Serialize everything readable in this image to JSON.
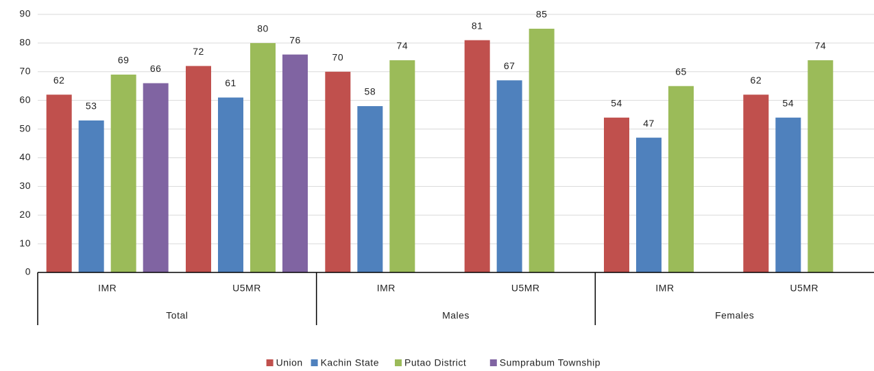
{
  "chart_data": {
    "type": "bar",
    "categories": [
      "IMR",
      "U5MR",
      "IMR",
      "U5MR",
      "IMR",
      "U5MR"
    ],
    "groups": [
      "Total",
      "Males",
      "Females"
    ],
    "series": [
      {
        "name": "Union",
        "color": "#c0504d",
        "values": [
          62,
          72,
          70,
          81,
          54,
          62
        ]
      },
      {
        "name": "Kachin State",
        "color": "#4f81bd",
        "values": [
          53,
          61,
          58,
          67,
          47,
          54
        ]
      },
      {
        "name": "Putao District",
        "color": "#9bbb59",
        "values": [
          69,
          80,
          74,
          85,
          65,
          74
        ]
      },
      {
        "name": "Sumprabum Township",
        "color": "#8064a2",
        "values": [
          66,
          76,
          null,
          null,
          null,
          null
        ]
      }
    ],
    "ylim": [
      0,
      90
    ],
    "yticks": [
      0,
      10,
      20,
      30,
      40,
      50,
      60,
      70,
      80,
      90
    ],
    "grid": true,
    "legend": "bottom"
  }
}
